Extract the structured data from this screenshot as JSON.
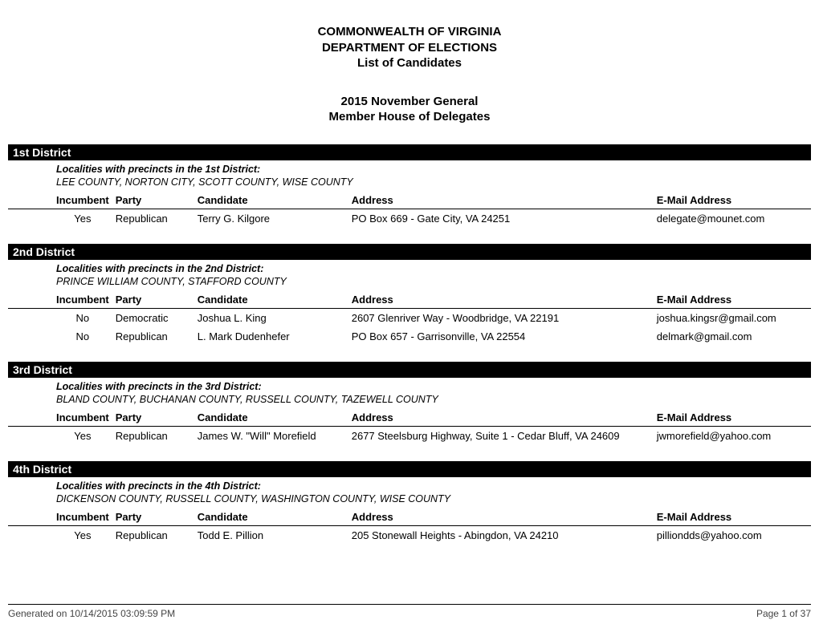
{
  "header": {
    "line1": "COMMONWEALTH OF VIRGINIA",
    "line2": "DEPARTMENT OF ELECTIONS",
    "line3": "List of Candidates"
  },
  "subheader": {
    "line1": "2015 November General",
    "line2": "Member House of Delegates"
  },
  "columns": {
    "incumbent": "Incumbent",
    "party": "Party",
    "candidate": "Candidate",
    "address": "Address",
    "email": "E-Mail Address"
  },
  "districts": [
    {
      "title": "1st District",
      "localities_label": "Localities with precincts in the 1st District:",
      "localities_value": "LEE COUNTY, NORTON CITY, SCOTT COUNTY, WISE COUNTY",
      "rows": [
        {
          "incumbent": "Yes",
          "party": "Republican",
          "candidate": "Terry G. Kilgore",
          "address": "PO Box 669 - Gate City, VA  24251",
          "email": "delegate@mounet.com"
        }
      ]
    },
    {
      "title": "2nd District",
      "localities_label": "Localities with precincts in the 2nd District:",
      "localities_value": "PRINCE WILLIAM COUNTY, STAFFORD COUNTY",
      "rows": [
        {
          "incumbent": "No",
          "party": "Democratic",
          "candidate": "Joshua L. King",
          "address": "2607 Glenriver Way - Woodbridge, VA  22191",
          "email": "joshua.kingsr@gmail.com"
        },
        {
          "incumbent": "No",
          "party": "Republican",
          "candidate": "L. Mark Dudenhefer",
          "address": "PO Box 657 - Garrisonville, VA  22554",
          "email": "delmark@gmail.com"
        }
      ]
    },
    {
      "title": "3rd District",
      "localities_label": "Localities with precincts in the 3rd District:",
      "localities_value": "BLAND COUNTY, BUCHANAN COUNTY, RUSSELL COUNTY, TAZEWELL COUNTY",
      "rows": [
        {
          "incumbent": "Yes",
          "party": "Republican",
          "candidate": "James W. \"Will\" Morefield",
          "address": "2677 Steelsburg Highway, Suite 1 - Cedar Bluff, VA  24609",
          "email": "jwmorefield@yahoo.com"
        }
      ]
    },
    {
      "title": "4th District",
      "localities_label": "Localities with precincts in the 4th District:",
      "localities_value": "DICKENSON COUNTY, RUSSELL COUNTY, WASHINGTON COUNTY, WISE COUNTY",
      "rows": [
        {
          "incumbent": "Yes",
          "party": "Republican",
          "candidate": "Todd E. Pillion",
          "address": "205 Stonewall Heights - Abingdon, VA  24210",
          "email": "pilliondds@yahoo.com"
        }
      ]
    }
  ],
  "footer": {
    "generated": "Generated on 10/14/2015 03:09:59 PM",
    "page": "Page 1 of 37"
  }
}
